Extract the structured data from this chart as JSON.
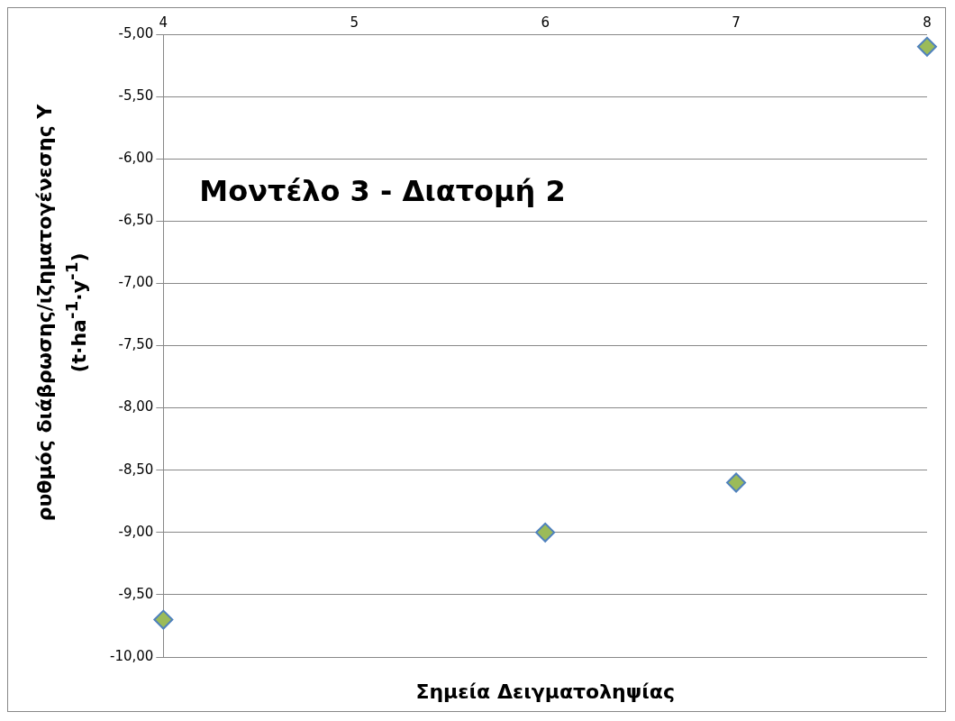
{
  "chart_data": {
    "type": "scatter",
    "title": "Μοντέλο 3 - Διατομή 2",
    "xlabel": "Σημεία Δειγματοληψίας",
    "ylabel": "ρυθμός διάβρωσης/ιζηματογένεσης Y\n(t·ha$^{-1}$·y$^{-1}$)",
    "x": [
      4,
      6,
      7,
      8
    ],
    "series": [
      {
        "color": "#9bbb59",
        "values": [
          -9.7,
          -9.0,
          -8.6,
          -5.1
        ]
      }
    ],
    "xlim": [
      4,
      8
    ],
    "xticks": [
      4,
      5,
      6,
      7,
      8
    ],
    "ylim": [
      -10,
      -5
    ],
    "yticks": [
      {
        "value": -10,
        "label": "-10,00"
      },
      {
        "value": -9.5,
        "label": "-9,50"
      },
      {
        "value": -9,
        "label": "-9,00"
      },
      {
        "value": -8.5,
        "label": "-8,50"
      },
      {
        "value": -8,
        "label": "-8,00"
      },
      {
        "value": -7.5,
        "label": "-7,50"
      },
      {
        "value": -7,
        "label": "-7,00"
      },
      {
        "value": -6.5,
        "label": "-6,50"
      },
      {
        "value": -6,
        "label": "-6,00"
      },
      {
        "value": -5.5,
        "label": "-5,50"
      },
      {
        "value": -5,
        "label": "-5,00"
      }
    ],
    "grid": "y",
    "legend": false,
    "marker": "diamond"
  }
}
